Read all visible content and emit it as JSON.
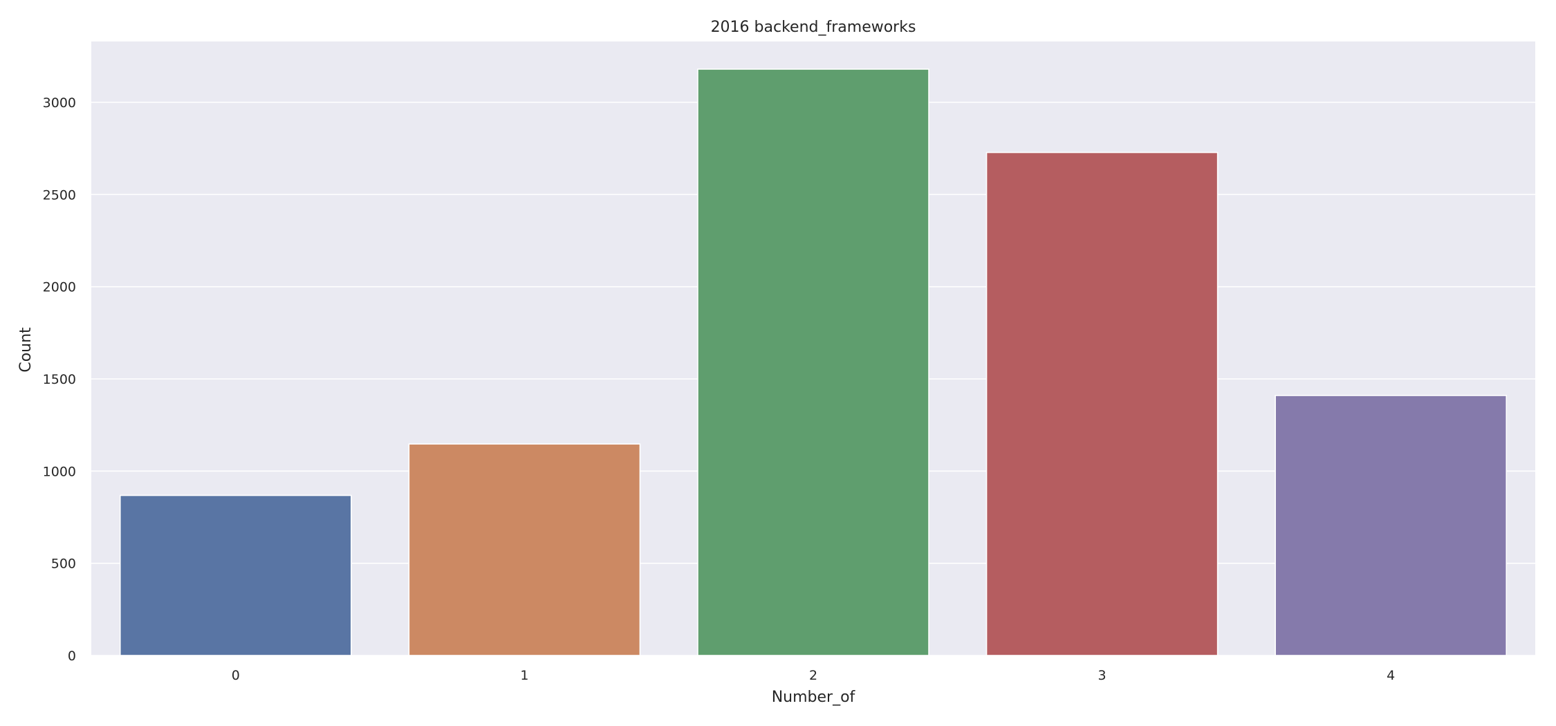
{
  "chart_data": {
    "type": "bar",
    "title": "2016 backend_frameworks",
    "xlabel": "Number_of",
    "ylabel": "Count",
    "categories": [
      "0",
      "1",
      "2",
      "3",
      "4"
    ],
    "values": [
      868,
      1147,
      3180,
      2728,
      1410
    ],
    "ylim": [
      0,
      3330
    ],
    "yticks": [
      0,
      500,
      1000,
      1500,
      2000,
      2500,
      3000
    ],
    "grid": true,
    "legend": "none",
    "colors": [
      "#5975a4",
      "#cc8963",
      "#5f9e6e",
      "#b55d60",
      "#857aab"
    ],
    "background": "#eaeaf2"
  }
}
